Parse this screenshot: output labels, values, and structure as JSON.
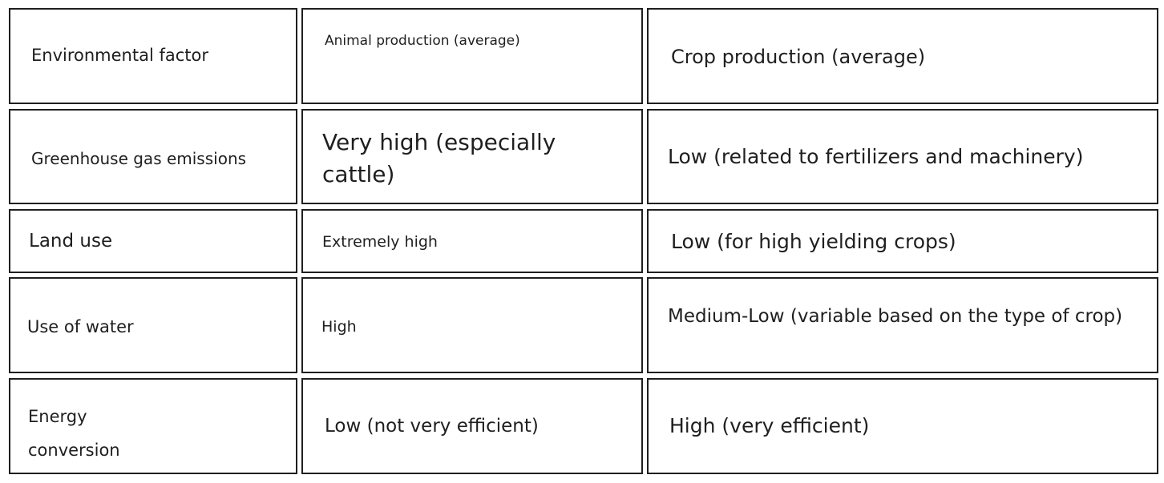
{
  "table": {
    "header": {
      "factor": "Environmental factor",
      "animal": "Animal production (average)",
      "crop": "Crop production (average)"
    },
    "rows": [
      {
        "factor": "Greenhouse gas emissions",
        "animal": "Very high (especially cattle)",
        "crop": "Low (related to fertilizers and machinery)"
      },
      {
        "factor": "Land use",
        "animal": "Extremely high",
        "crop": "Low (for high yielding crops)"
      },
      {
        "factor": "Use of water",
        "animal": "High",
        "crop": "Medium-Low (variable based on the type of crop)"
      },
      {
        "factor": "Energy conversion",
        "animal": "Low (not very efficient)",
        "crop": "High (very efficient)"
      }
    ]
  }
}
